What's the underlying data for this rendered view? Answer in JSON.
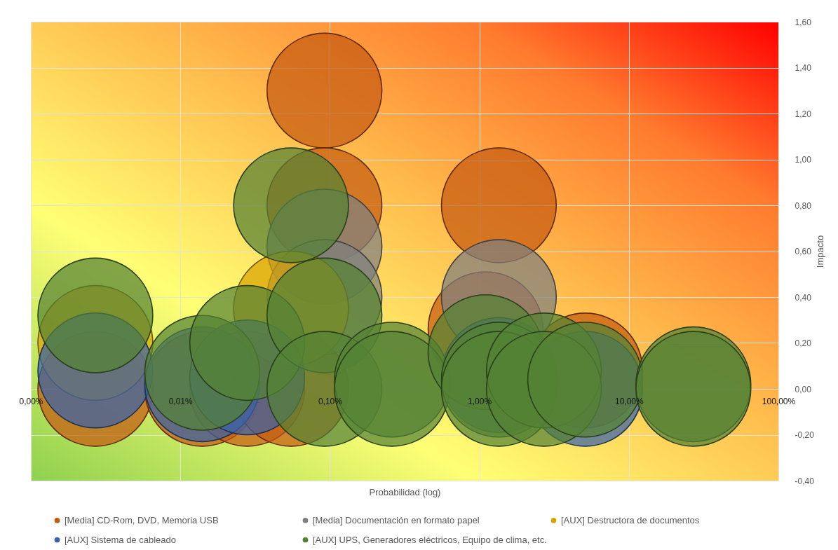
{
  "chart_data": {
    "type": "bubble",
    "xlabel": "Probabilidad (log)",
    "ylabel": "Impacto",
    "log": "x",
    "grid": true,
    "legend": "bottom",
    "xlim": [
      0.001,
      100
    ],
    "xticks": [
      {
        "value": 0.001,
        "label": "0,00%"
      },
      {
        "value": 0.01,
        "label": "0,01%"
      },
      {
        "value": 0.1,
        "label": "0,10%"
      },
      {
        "value": 1,
        "label": "1,00%"
      },
      {
        "value": 10,
        "label": "10,00%"
      },
      {
        "value": 100,
        "label": "100,00%"
      }
    ],
    "ylim": [
      -0.4,
      1.6
    ],
    "yticks": [
      {
        "value": -0.4,
        "label": "-0,40"
      },
      {
        "value": -0.2,
        "label": "-0,20"
      },
      {
        "value": 0,
        "label": "0,00"
      },
      {
        "value": 0.2,
        "label": "0,20"
      },
      {
        "value": 0.4,
        "label": "0,40"
      },
      {
        "value": 0.6,
        "label": "0,60"
      },
      {
        "value": 0.8,
        "label": "0,80"
      },
      {
        "value": 1,
        "label": "1,00"
      },
      {
        "value": 1.2,
        "label": "1,20"
      },
      {
        "value": 1.4,
        "label": "1,40"
      },
      {
        "value": 1.6,
        "label": "1,60"
      }
    ],
    "series": [
      {
        "name": "[Media] CD-Rom, DVD, Memoria USB",
        "color": "#c55a11",
        "x": [
          0.0027,
          0.014,
          0.028,
          0.055,
          0.092,
          0.092,
          1.1,
          1.35,
          5.1
        ],
        "values": [
          0,
          0,
          0,
          0,
          1.3,
          0.8,
          0.26,
          0.8,
          0.08
        ],
        "sizes": [
          1,
          1,
          1,
          1,
          1,
          1,
          1,
          1,
          1
        ]
      },
      {
        "name": "[Media] Documentación en formato papel",
        "color": "#808080",
        "x": [
          0.092,
          0.092,
          1.35
        ],
        "values": [
          0.62,
          0.4,
          0.4
        ],
        "sizes": [
          1,
          1,
          1
        ]
      },
      {
        "name": "[AUX] Destructora de documentos",
        "color": "#d9a300",
        "x": [
          0.0027,
          0.055
        ],
        "values": [
          0.2,
          0.35
        ],
        "sizes": [
          1,
          1
        ]
      },
      {
        "name": "[AUX] Sistema de cableado",
        "color": "#3a62a8",
        "x": [
          0.0027,
          0.014,
          0.028,
          1.35,
          5.1
        ],
        "values": [
          0.08,
          0.02,
          0.05,
          0.06,
          0
        ],
        "sizes": [
          1,
          1,
          1,
          1,
          1
        ]
      },
      {
        "name": "[AUX] UPS, Generadores eléctricos, Equipo de clima, etc.",
        "color": "#548235",
        "x": [
          0.0027,
          0.014,
          0.028,
          0.055,
          0.092,
          0.092,
          0.26,
          0.26,
          1.1,
          1.35,
          1.35,
          2.7,
          2.7,
          5.1,
          27,
          27
        ],
        "values": [
          0.32,
          0.07,
          0.2,
          0.8,
          0.32,
          0,
          0.04,
          0,
          0.16,
          0.04,
          0,
          0.08,
          0,
          0.04,
          0.02,
          0
        ],
        "sizes": [
          1,
          1,
          1,
          1,
          1,
          1,
          1,
          1,
          1,
          1,
          1,
          1,
          1,
          1,
          1,
          1
        ]
      }
    ]
  }
}
